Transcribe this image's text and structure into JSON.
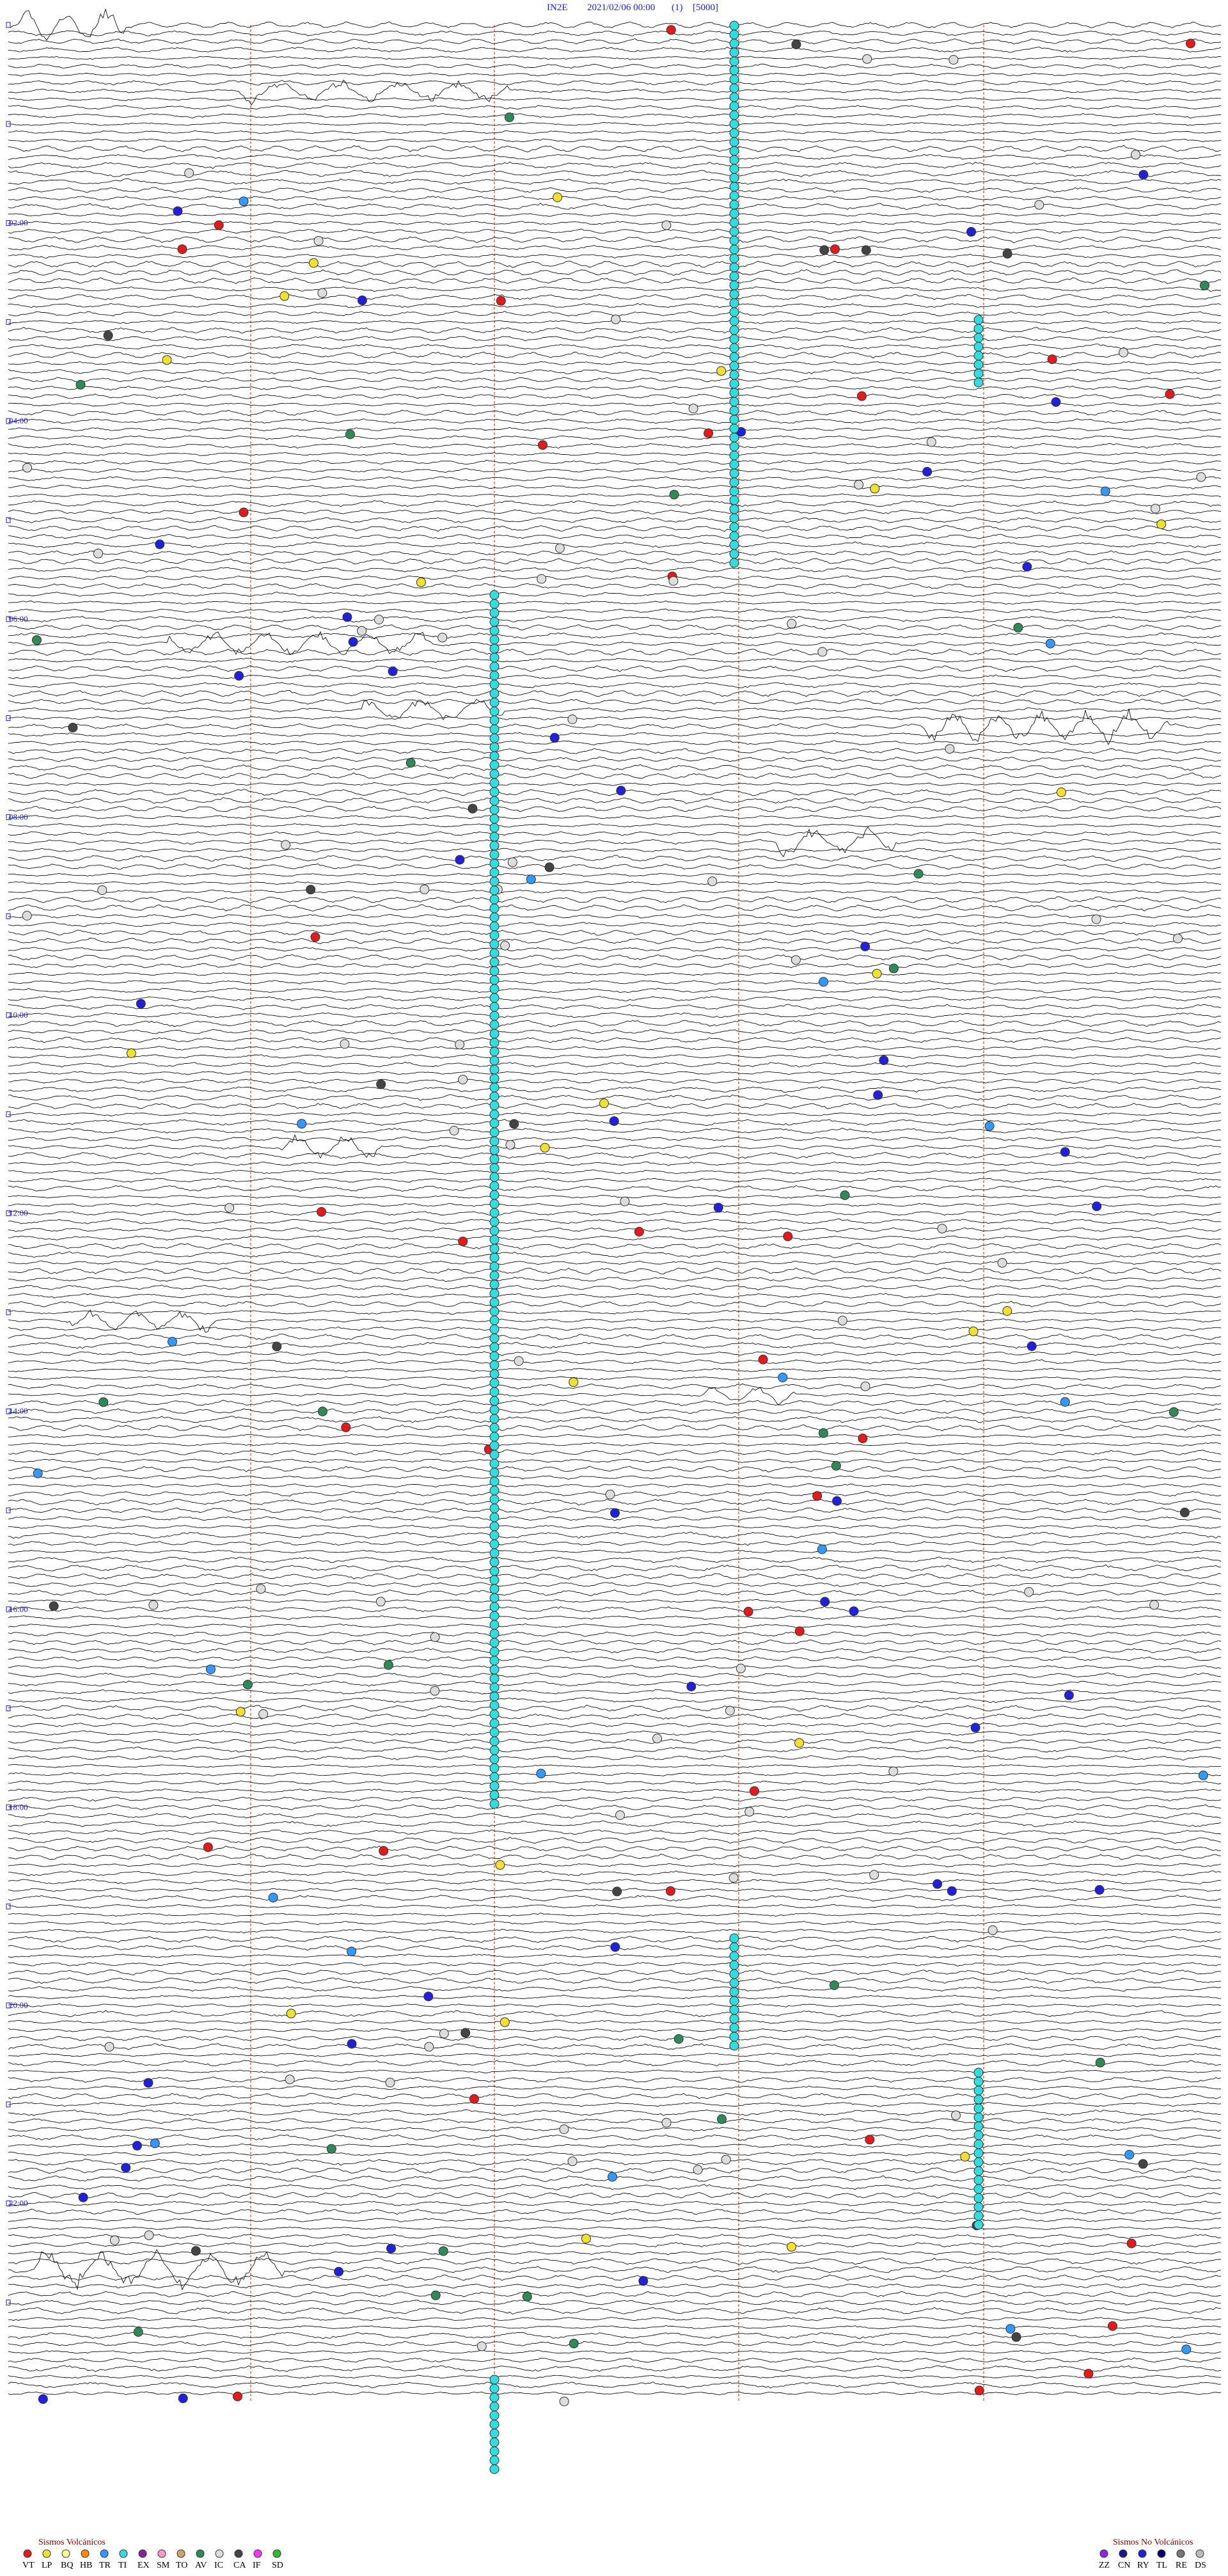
{
  "header": {
    "station": "IN2E",
    "datetime": "2021/02/06 00:00",
    "channel": "(1)",
    "scale": "[5000]"
  },
  "hour_labels": [
    "02:00",
    "04:00",
    "06:00",
    "08:00",
    "10:00",
    "12:00",
    "14:00",
    "16:00",
    "18:00",
    "20:00",
    "22:00"
  ],
  "legend_volcanic": {
    "title": "Sismos Volcánicos",
    "items": [
      {
        "code": "VT",
        "color": "#e41a1c"
      },
      {
        "code": "LP",
        "color": "#f0e030"
      },
      {
        "code": "BQ",
        "color": "#ffff99"
      },
      {
        "code": "HB",
        "color": "#ff8c00"
      },
      {
        "code": "TR",
        "color": "#3399ff"
      },
      {
        "code": "TI",
        "color": "#33dddd"
      },
      {
        "code": "EX",
        "color": "#7b2a8f"
      },
      {
        "code": "SM",
        "color": "#ff99cc"
      },
      {
        "code": "TO",
        "color": "#d2a26a"
      },
      {
        "code": "AV",
        "color": "#2e8b57"
      },
      {
        "code": "IC",
        "color": "#dddddd"
      },
      {
        "code": "CA",
        "color": "#444444"
      },
      {
        "code": "IF",
        "color": "#ff33ff"
      },
      {
        "code": "SD",
        "color": "#33bb33"
      }
    ]
  },
  "legend_nonvolcanic": {
    "title": "Sismos No Volcánicos",
    "items": [
      {
        "code": "ZZ",
        "color": "#8a2be2"
      },
      {
        "code": "CN",
        "color": "#1a1a8c"
      },
      {
        "code": "RY",
        "color": "#2020dd"
      },
      {
        "code": "TL",
        "color": "#000066"
      },
      {
        "code": "RE",
        "color": "#777777"
      },
      {
        "code": "DS",
        "color": "#bbbbbb"
      }
    ]
  }
}
